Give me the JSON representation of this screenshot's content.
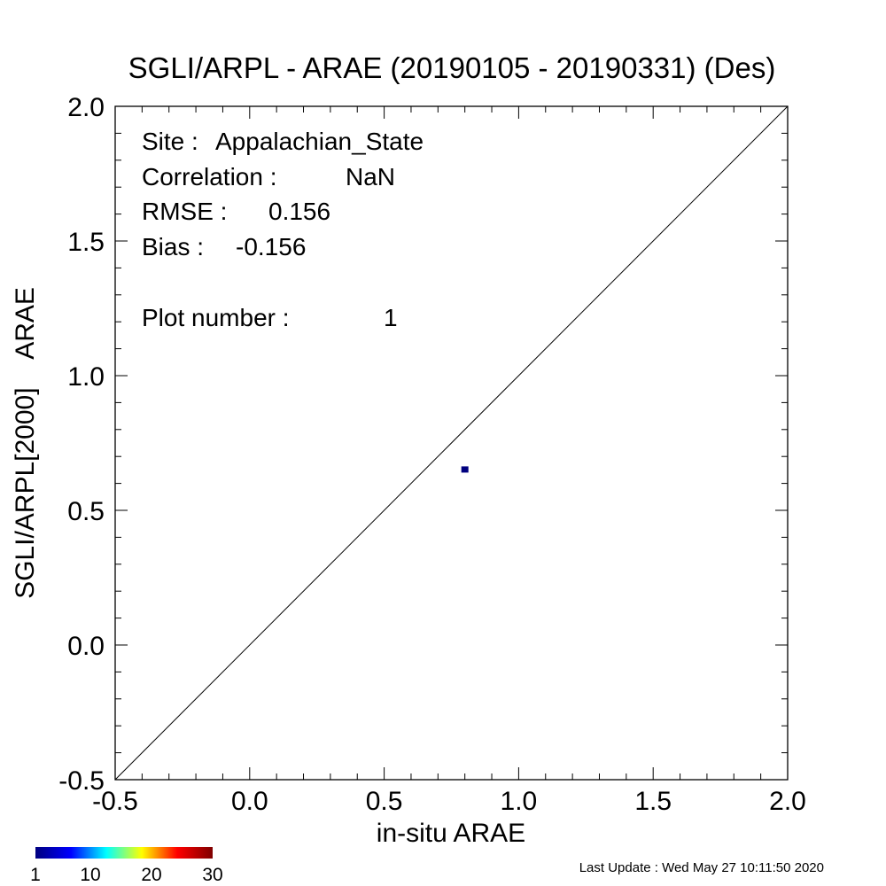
{
  "chart_data": {
    "type": "scatter",
    "title": "SGLI/ARPL - ARAE (20190105 - 20190331) (Des)",
    "xlabel": "in-situ ARAE",
    "ylabel": "SGLI/ARPL[2000]    ARAE",
    "xlim": [
      -0.5,
      2.0
    ],
    "ylim": [
      -0.5,
      2.0
    ],
    "xticks": [
      "-0.5",
      "0.0",
      "0.5",
      "1.0",
      "1.5",
      "2.0"
    ],
    "yticks": [
      "-0.5",
      "0.0",
      "0.5",
      "1.0",
      "1.5",
      "2.0"
    ],
    "one_to_one_line": true,
    "points": [
      {
        "x": 0.8,
        "y": 0.65,
        "count": 1,
        "color": "#00007f"
      }
    ],
    "stats": [
      {
        "label": "Site :",
        "value": "Appalachian_State"
      },
      {
        "label": "Correlation :",
        "value": "NaN"
      },
      {
        "label": "RMSE :",
        "value": "0.156"
      },
      {
        "label": "Bias :",
        "value": "-0.156"
      },
      {
        "label": "Plot number :",
        "value": "1"
      }
    ],
    "colorbar": {
      "ticks": [
        "1",
        "10",
        "20",
        "30"
      ],
      "range": [
        1,
        30
      ],
      "colors": [
        "#00007f",
        "#0000ff",
        "#00ffff",
        "#ffff00",
        "#ff0000",
        "#7f0000"
      ]
    }
  },
  "footer": "Last Update : Wed May 27 10:11:50 2020"
}
